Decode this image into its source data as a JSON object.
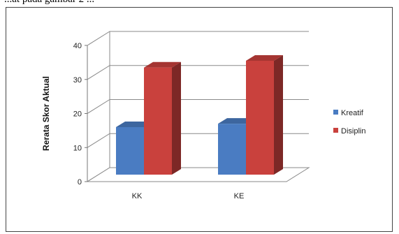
{
  "caption_text": "...at pada gambar 2 ...",
  "chart_data": {
    "type": "bar",
    "title": "",
    "xlabel": "",
    "ylabel": "Rerata Skor Aktual",
    "categories": [
      "KK",
      "KE"
    ],
    "series": [
      {
        "name": "Kreatif",
        "values": [
          16,
          17
        ],
        "color": "#4a7cc2"
      },
      {
        "name": "Disiplin",
        "values": [
          33.5,
          35.5
        ],
        "color": "#c9413d"
      }
    ],
    "ylim": [
      0,
      40
    ],
    "yticks": [
      "0",
      "10",
      "20",
      "30",
      "40"
    ],
    "grid": true,
    "style": "3d-column",
    "legend": "right"
  }
}
